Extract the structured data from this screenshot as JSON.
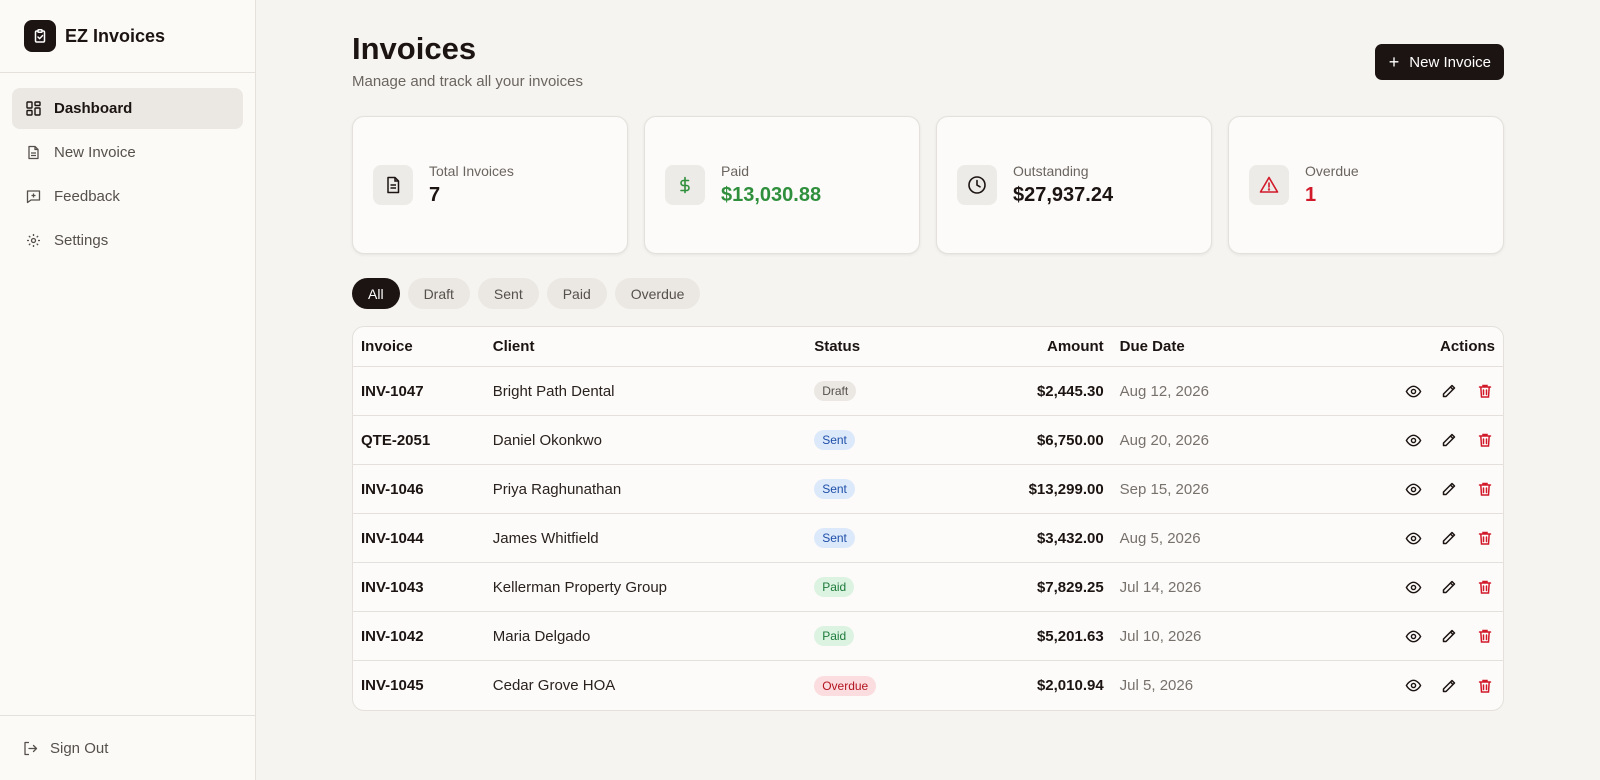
{
  "app": {
    "name": "EZ Invoices"
  },
  "sidebar": {
    "items": [
      {
        "label": "Dashboard",
        "icon": "dashboard-icon",
        "active": true
      },
      {
        "label": "New Invoice",
        "icon": "document-icon",
        "active": false
      },
      {
        "label": "Feedback",
        "icon": "feedback-icon",
        "active": false
      },
      {
        "label": "Settings",
        "icon": "gear-icon",
        "active": false
      }
    ],
    "signout_label": "Sign Out"
  },
  "header": {
    "title": "Invoices",
    "subtitle": "Manage and track all your invoices",
    "new_button_label": "New Invoice"
  },
  "stats": [
    {
      "label": "Total Invoices",
      "value": "7",
      "icon": "document-icon",
      "tone": "default"
    },
    {
      "label": "Paid",
      "value": "$13,030.88",
      "icon": "dollar-icon",
      "tone": "green"
    },
    {
      "label": "Outstanding",
      "value": "$27,937.24",
      "icon": "clock-icon",
      "tone": "default"
    },
    {
      "label": "Overdue",
      "value": "1",
      "icon": "warning-icon",
      "tone": "red"
    }
  ],
  "filters": [
    {
      "label": "All",
      "active": true
    },
    {
      "label": "Draft",
      "active": false
    },
    {
      "label": "Sent",
      "active": false
    },
    {
      "label": "Paid",
      "active": false
    },
    {
      "label": "Overdue",
      "active": false
    }
  ],
  "table": {
    "columns": {
      "invoice": "Invoice",
      "client": "Client",
      "status": "Status",
      "amount": "Amount",
      "due": "Due Date",
      "actions": "Actions"
    },
    "rows": [
      {
        "invoice": "INV-1047",
        "client": "Bright Path Dental",
        "status": "Draft",
        "amount": "$2,445.30",
        "due": "Aug 12, 2026"
      },
      {
        "invoice": "QTE-2051",
        "client": "Daniel Okonkwo",
        "status": "Sent",
        "amount": "$6,750.00",
        "due": "Aug 20, 2026"
      },
      {
        "invoice": "INV-1046",
        "client": "Priya Raghunathan",
        "status": "Sent",
        "amount": "$13,299.00",
        "due": "Sep 15, 2026"
      },
      {
        "invoice": "INV-1044",
        "client": "James Whitfield",
        "status": "Sent",
        "amount": "$3,432.00",
        "due": "Aug 5, 2026"
      },
      {
        "invoice": "INV-1043",
        "client": "Kellerman Property Group",
        "status": "Paid",
        "amount": "$7,829.25",
        "due": "Jul 14, 2026"
      },
      {
        "invoice": "INV-1042",
        "client": "Maria Delgado",
        "status": "Paid",
        "amount": "$5,201.63",
        "due": "Jul 10, 2026"
      },
      {
        "invoice": "INV-1045",
        "client": "Cedar Grove HOA",
        "status": "Overdue",
        "amount": "$2,010.94",
        "due": "Jul 5, 2026"
      }
    ]
  },
  "colors": {
    "brand": "#1c1412",
    "paid": "#2f8f3c",
    "overdue": "#d2192a",
    "delete": "#d2192a"
  }
}
